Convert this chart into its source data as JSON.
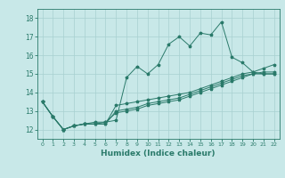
{
  "xlabel": "Humidex (Indice chaleur)",
  "bg_color": "#c8e8e8",
  "grid_color": "#a8d0d0",
  "line_color": "#2a7a6a",
  "xlim": [
    -0.5,
    22.5
  ],
  "ylim": [
    11.5,
    18.5
  ],
  "xticks": [
    0,
    1,
    2,
    3,
    4,
    5,
    6,
    7,
    8,
    9,
    10,
    11,
    12,
    13,
    14,
    15,
    16,
    17,
    18,
    19,
    20,
    21,
    22
  ],
  "yticks": [
    12,
    13,
    14,
    15,
    16,
    17,
    18
  ],
  "lines": [
    [
      13.5,
      12.7,
      12.0,
      12.2,
      12.3,
      12.4,
      12.4,
      12.5,
      14.8,
      15.4,
      15.0,
      15.5,
      16.6,
      17.0,
      16.5,
      17.2,
      17.1,
      17.8,
      15.9,
      15.6,
      15.1,
      15.0,
      15.0
    ],
    [
      13.5,
      12.7,
      12.0,
      12.2,
      12.3,
      12.3,
      12.3,
      13.3,
      13.4,
      13.5,
      13.6,
      13.7,
      13.8,
      13.9,
      14.0,
      14.2,
      14.4,
      14.6,
      14.8,
      15.0,
      15.1,
      15.3,
      15.5
    ],
    [
      13.5,
      12.7,
      12.0,
      12.2,
      12.3,
      12.3,
      12.3,
      13.0,
      13.1,
      13.2,
      13.4,
      13.5,
      13.6,
      13.7,
      13.9,
      14.1,
      14.3,
      14.5,
      14.7,
      14.9,
      15.0,
      15.1,
      15.1
    ],
    [
      13.5,
      12.7,
      12.0,
      12.2,
      12.3,
      12.3,
      12.4,
      12.9,
      13.0,
      13.1,
      13.3,
      13.4,
      13.5,
      13.6,
      13.8,
      14.0,
      14.2,
      14.4,
      14.6,
      14.8,
      15.0,
      15.0,
      15.0
    ]
  ]
}
